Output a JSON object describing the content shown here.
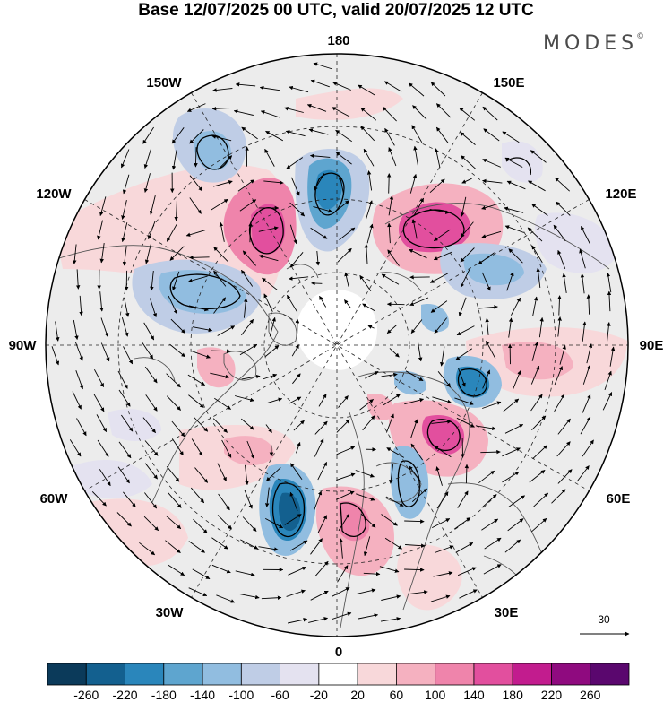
{
  "header": {
    "title": "Base 12/07/2025 00 UTC, valid 20/07/2025 12 UTC",
    "brand": "MODES",
    "brand_mark": "©"
  },
  "map": {
    "projection": "north-polar-stereographic",
    "longitude_labels": {
      "top": "180",
      "bottom": "0",
      "left": "90W",
      "right": "90E",
      "upper_left_1": "150W",
      "upper_left_2": "120W",
      "upper_right_1": "150E",
      "upper_right_2": "120E",
      "lower_left_1": "60W",
      "lower_left_2": "30W",
      "lower_right_1": "60E",
      "lower_right_2": "30E"
    },
    "wind_reference": {
      "value": "30"
    }
  },
  "colorbar": {
    "ticks": [
      "-260",
      "-220",
      "-180",
      "-140",
      "-100",
      "-60",
      "-20",
      "20",
      "60",
      "100",
      "140",
      "180",
      "220",
      "260"
    ],
    "colors": [
      "#0b3a5a",
      "#13608f",
      "#2a86bb",
      "#5ea5cf",
      "#91bde0",
      "#bfcde6",
      "#e4e2f0",
      "#ffffff",
      "#f8d8da",
      "#f5b1c0",
      "#ef84ab",
      "#e24f9e",
      "#c21c8e",
      "#8f0a7f",
      "#5a076e"
    ]
  }
}
